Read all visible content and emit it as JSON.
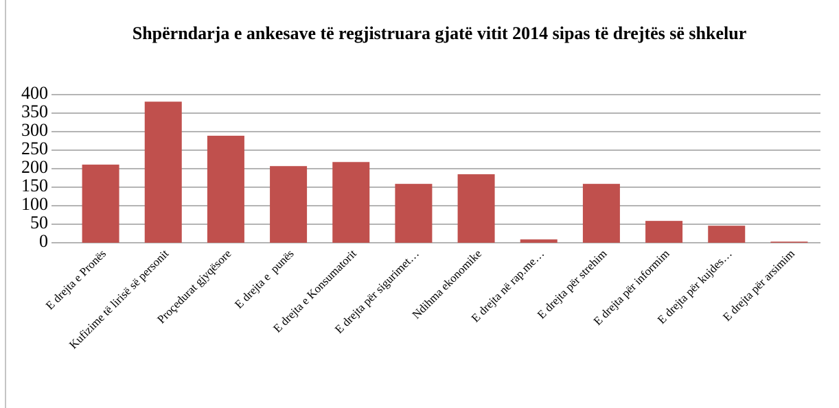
{
  "chart_data": {
    "type": "bar",
    "title": "Shpërndarja e ankesave të regjistruara gjatë vitit 2014 sipas të drejtës së shkelur",
    "categories": [
      "E drejta e Pronës",
      "Kufizime të lirisë së personit",
      "Proçedurat gjyqësore",
      "E drejta e  punës",
      "E drejta e Konsumatorit",
      "E drejta për sigurimet…",
      "Ndihma ekonomike",
      "E drejta në rap.me…",
      "E drejta për strehim",
      "E drejta për informim",
      "E drejta për kujdes…",
      "E drejta për arsimim"
    ],
    "values": [
      211,
      381,
      289,
      207,
      218,
      159,
      185,
      9,
      159,
      59,
      46,
      3
    ],
    "color": "#c0504d",
    "ylim": [
      0,
      400
    ],
    "yticks": [
      0,
      50,
      100,
      150,
      200,
      250,
      300,
      350,
      400
    ],
    "grid": true
  }
}
